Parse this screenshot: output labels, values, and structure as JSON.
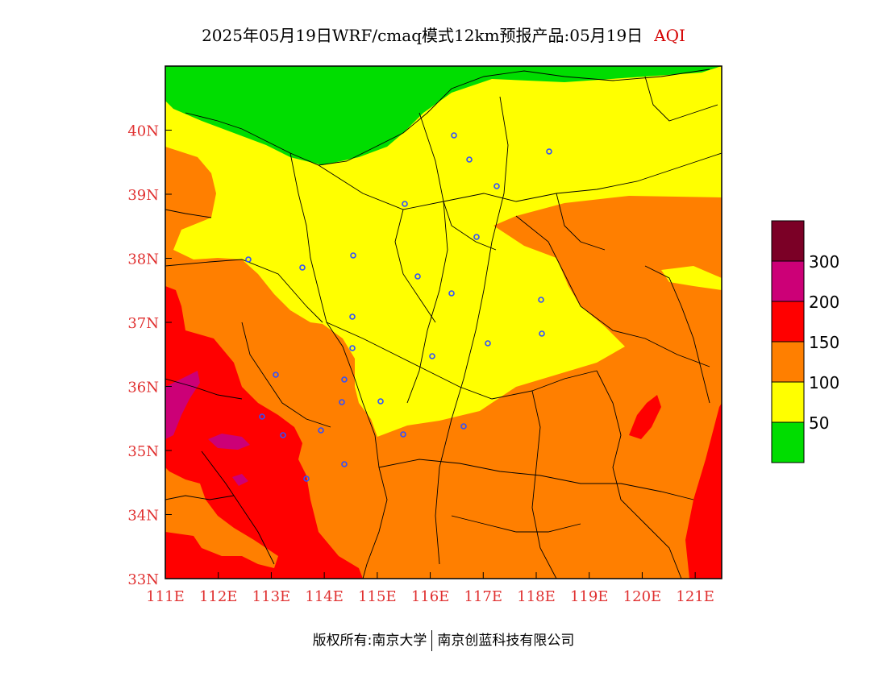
{
  "title": {
    "main": "2025年05月19日WRF/cmaq模式12km预报产品:05月19日",
    "tag": "AQI"
  },
  "map": {
    "lon_range": [
      111,
      121.5
    ],
    "lat_range": [
      33,
      41
    ],
    "lon_ticks": [
      "111E",
      "112E",
      "113E",
      "114E",
      "115E",
      "116E",
      "117E",
      "118E",
      "119E",
      "120E",
      "121E"
    ],
    "lat_ticks": [
      "33N",
      "34N",
      "35N",
      "36N",
      "37N",
      "38N",
      "39N",
      "40N"
    ],
    "axis_label_color": "#e03030",
    "stations_color": "#3050ff"
  },
  "legend": {
    "colors": [
      "#7b0026",
      "#cc0077",
      "#ff0000",
      "#ff7f00",
      "#ffff00",
      "#00dd00"
    ],
    "labels": [
      "300",
      "200",
      "150",
      "100",
      "50"
    ]
  },
  "footer": {
    "left": "版权所有:南京大学",
    "right": "南京创蓝科技有限公司"
  }
}
